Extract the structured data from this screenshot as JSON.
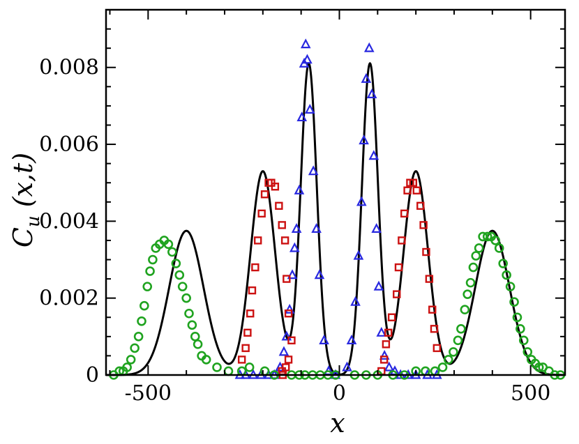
{
  "chart_data": {
    "type": "scatter",
    "title": "",
    "xlabel": "x",
    "ylabel": {
      "main": "C",
      "sub": "u",
      "args": "(x,t)"
    },
    "xlim": [
      -610,
      590
    ],
    "ylim": [
      0,
      0.0095
    ],
    "x_ticks": [
      -500,
      0,
      500
    ],
    "x_tick_labels": [
      "-500",
      "0",
      "500"
    ],
    "y_ticks": [
      0,
      0.002,
      0.004,
      0.006,
      0.008
    ],
    "y_tick_labels": [
      "0",
      "0.002",
      "0.004",
      "0.006",
      "0.008"
    ],
    "x_minor_step": 100,
    "y_minor_step": 0.0005,
    "grid": false,
    "series": [
      {
        "kind": "line",
        "color": "#000000",
        "components": [
          {
            "amp": 0.0081,
            "mu": -80,
            "sigma": 21
          },
          {
            "amp": 0.0081,
            "mu": 80,
            "sigma": 21
          },
          {
            "amp": 0.0053,
            "mu": -200,
            "sigma": 32
          },
          {
            "amp": 0.0053,
            "mu": 200,
            "sigma": 32
          },
          {
            "amp": 0.00375,
            "mu": -400,
            "sigma": 45
          },
          {
            "amp": 0.00375,
            "mu": 400,
            "sigma": 45
          }
        ]
      },
      {
        "kind": "triangle",
        "color": "#2828e0",
        "points": [
          [
            -260,
            0
          ],
          [
            -245,
            0
          ],
          [
            -225,
            0
          ],
          [
            -205,
            0
          ],
          [
            -185,
            0
          ],
          [
            -170,
            0
          ],
          [
            -155,
            0.0002
          ],
          [
            -145,
            0.0006
          ],
          [
            -138,
            0.001
          ],
          [
            -130,
            0.0017
          ],
          [
            -123,
            0.0026
          ],
          [
            -117,
            0.0033
          ],
          [
            -112,
            0.0038
          ],
          [
            -105,
            0.0048
          ],
          [
            -98,
            0.0067
          ],
          [
            -92,
            0.0081
          ],
          [
            -88,
            0.0086
          ],
          [
            -84,
            0.0082
          ],
          [
            -77,
            0.0069
          ],
          [
            -68,
            0.0053
          ],
          [
            -60,
            0.0038
          ],
          [
            -52,
            0.0026
          ],
          [
            -40,
            0.0009
          ],
          [
            -28,
            0.0001
          ],
          [
            -10,
            0
          ],
          [
            20,
            0.0002
          ],
          [
            32,
            0.0009
          ],
          [
            42,
            0.0019
          ],
          [
            50,
            0.0031
          ],
          [
            58,
            0.0045
          ],
          [
            64,
            0.0061
          ],
          [
            70,
            0.0077
          ],
          [
            78,
            0.0085
          ],
          [
            85,
            0.0073
          ],
          [
            90,
            0.0057
          ],
          [
            97,
            0.0038
          ],
          [
            103,
            0.0023
          ],
          [
            110,
            0.0011
          ],
          [
            118,
            0.0005
          ],
          [
            130,
            0.0002
          ],
          [
            145,
            0.0001
          ],
          [
            160,
            0
          ],
          [
            180,
            0
          ],
          [
            200,
            0
          ],
          [
            230,
            0
          ],
          [
            255,
            0
          ]
        ]
      },
      {
        "kind": "square",
        "color": "#cc1111",
        "points": [
          [
            -150,
            0.0001
          ],
          [
            -148,
            0
          ],
          [
            -140,
            0.0002
          ],
          [
            -133,
            0.0004
          ],
          [
            -125,
            0.0009
          ],
          [
            -133,
            0.0016
          ],
          [
            -138,
            0.0025
          ],
          [
            -142,
            0.0035
          ],
          [
            -150,
            0.0039
          ],
          [
            -158,
            0.0044
          ],
          [
            -168,
            0.0049
          ],
          [
            -178,
            0.005
          ],
          [
            -185,
            0.005
          ],
          [
            -195,
            0.0047
          ],
          [
            -203,
            0.0042
          ],
          [
            -213,
            0.0035
          ],
          [
            -220,
            0.0028
          ],
          [
            -228,
            0.0022
          ],
          [
            -233,
            0.0016
          ],
          [
            -240,
            0.0011
          ],
          [
            -245,
            0.0007
          ],
          [
            -255,
            0.0004
          ],
          [
            110,
            0.0001
          ],
          [
            117,
            0.0004
          ],
          [
            122,
            0.0008
          ],
          [
            128,
            0.0011
          ],
          [
            137,
            0.0015
          ],
          [
            150,
            0.0021
          ],
          [
            155,
            0.0028
          ],
          [
            163,
            0.0035
          ],
          [
            170,
            0.0042
          ],
          [
            178,
            0.0048
          ],
          [
            185,
            0.005
          ],
          [
            193,
            0.005
          ],
          [
            202,
            0.0048
          ],
          [
            212,
            0.0044
          ],
          [
            220,
            0.0039
          ],
          [
            227,
            0.0032
          ],
          [
            235,
            0.0025
          ],
          [
            243,
            0.0017
          ],
          [
            248,
            0.0012
          ],
          [
            255,
            0.0007
          ]
        ]
      },
      {
        "kind": "circle",
        "color": "#1fa31f",
        "points": [
          [
            -590,
            0
          ],
          [
            -575,
            0.0001
          ],
          [
            -565,
            0.0001
          ],
          [
            -555,
            0.0002
          ],
          [
            -545,
            0.0004
          ],
          [
            -535,
            0.0007
          ],
          [
            -525,
            0.001
          ],
          [
            -517,
            0.0014
          ],
          [
            -510,
            0.0018
          ],
          [
            -502,
            0.0023
          ],
          [
            -495,
            0.0027
          ],
          [
            -488,
            0.003
          ],
          [
            -480,
            0.0033
          ],
          [
            -470,
            0.0034
          ],
          [
            -458,
            0.0035
          ],
          [
            -447,
            0.0034
          ],
          [
            -437,
            0.0032
          ],
          [
            -427,
            0.0029
          ],
          [
            -418,
            0.0026
          ],
          [
            -410,
            0.0023
          ],
          [
            -400,
            0.002
          ],
          [
            -393,
            0.0016
          ],
          [
            -385,
            0.0013
          ],
          [
            -377,
            0.001
          ],
          [
            -370,
            0.0008
          ],
          [
            -360,
            0.0005
          ],
          [
            -348,
            0.0004
          ],
          [
            -320,
            0.0002
          ],
          [
            -290,
            0.0001
          ],
          [
            -255,
            0.0001
          ],
          [
            -235,
            0.0002
          ],
          [
            -195,
            0.0001
          ],
          [
            -170,
            0
          ],
          [
            -125,
            0
          ],
          [
            -105,
            0
          ],
          [
            -90,
            0
          ],
          [
            -70,
            0
          ],
          [
            -50,
            0
          ],
          [
            -30,
            0
          ],
          [
            -10,
            0
          ],
          [
            40,
            0
          ],
          [
            70,
            0
          ],
          [
            100,
            0
          ],
          [
            140,
            0
          ],
          [
            170,
            0
          ],
          [
            200,
            0.0001
          ],
          [
            225,
            0.0001
          ],
          [
            250,
            0.0001
          ],
          [
            270,
            0.0002
          ],
          [
            285,
            0.0004
          ],
          [
            298,
            0.0006
          ],
          [
            310,
            0.0009
          ],
          [
            318,
            0.0012
          ],
          [
            328,
            0.0017
          ],
          [
            335,
            0.0021
          ],
          [
            343,
            0.0024
          ],
          [
            350,
            0.0028
          ],
          [
            357,
            0.0031
          ],
          [
            365,
            0.0033
          ],
          [
            375,
            0.0036
          ],
          [
            387,
            0.0036
          ],
          [
            397,
            0.0036
          ],
          [
            408,
            0.0035
          ],
          [
            418,
            0.0033
          ],
          [
            428,
            0.0029
          ],
          [
            437,
            0.0026
          ],
          [
            447,
            0.0023
          ],
          [
            457,
            0.0019
          ],
          [
            465,
            0.0015
          ],
          [
            473,
            0.0012
          ],
          [
            482,
            0.0009
          ],
          [
            492,
            0.0006
          ],
          [
            502,
            0.0004
          ],
          [
            512,
            0.0003
          ],
          [
            522,
            0.0002
          ],
          [
            532,
            0.0002
          ],
          [
            548,
            0.0001
          ],
          [
            563,
            0
          ],
          [
            578,
            0
          ]
        ]
      }
    ]
  }
}
